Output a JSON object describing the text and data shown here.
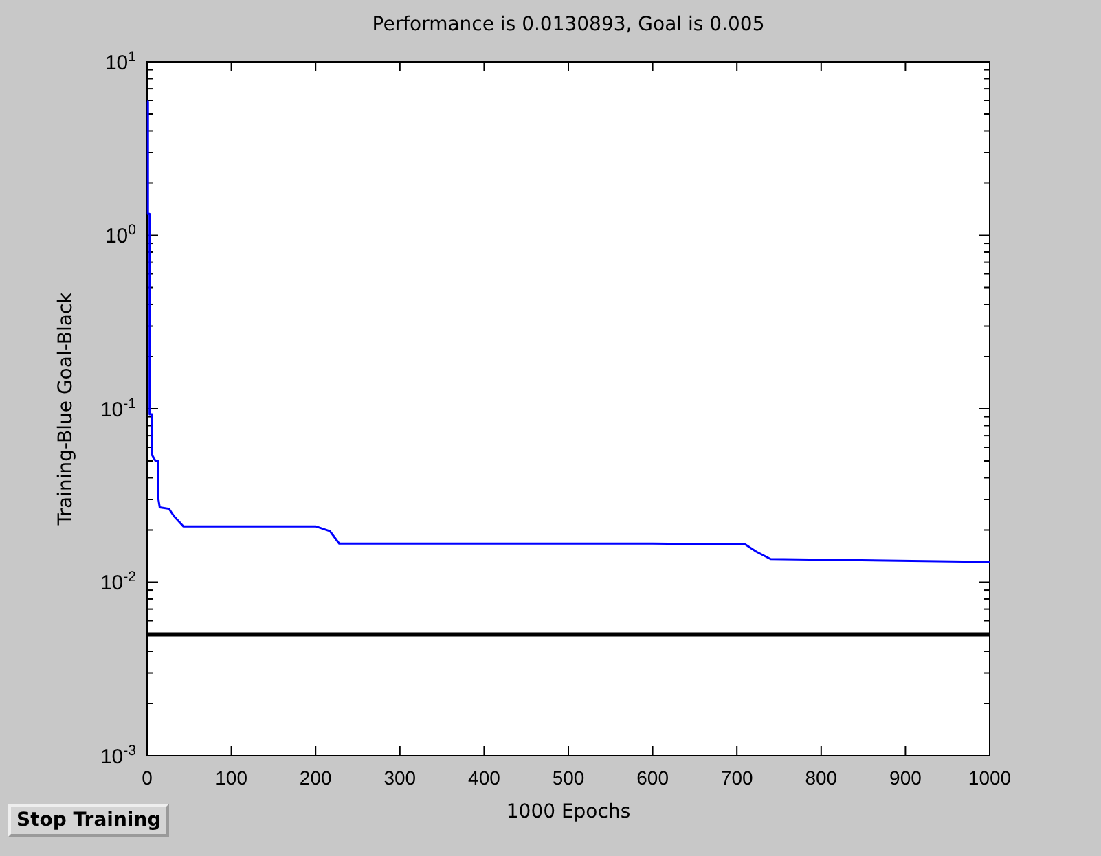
{
  "chart_data": {
    "type": "line",
    "title": "Performance is 0.0130893, Goal is 0.005",
    "xlabel": "1000 Epochs",
    "ylabel": "Training-Blue  Goal-Black",
    "log": "y",
    "grid": false,
    "marker": "none",
    "line_style": "solid",
    "xlim": [
      0,
      1000
    ],
    "xticks": [
      0,
      100,
      200,
      300,
      400,
      500,
      600,
      700,
      800,
      900,
      1000
    ],
    "ylim": [
      0.001,
      10
    ],
    "yticks": [
      {
        "value": 0.001,
        "label": "10$^{-3}$"
      },
      {
        "value": 0.002,
        "label": null
      },
      {
        "value": 0.003,
        "label": null
      },
      {
        "value": 0.004,
        "label": null
      },
      {
        "value": 0.005,
        "label": null
      },
      {
        "value": 0.006,
        "label": null
      },
      {
        "value": 0.007,
        "label": null
      },
      {
        "value": 0.008,
        "label": null
      },
      {
        "value": 0.009,
        "label": null
      },
      {
        "value": 0.01,
        "label": "10$^{-2}$"
      },
      {
        "value": 0.02,
        "label": null
      },
      {
        "value": 0.03,
        "label": null
      },
      {
        "value": 0.04,
        "label": null
      },
      {
        "value": 0.05,
        "label": null
      },
      {
        "value": 0.06,
        "label": null
      },
      {
        "value": 0.07,
        "label": null
      },
      {
        "value": 0.08,
        "label": null
      },
      {
        "value": 0.09,
        "label": null
      },
      {
        "value": 0.1,
        "label": "10$^{-1}$"
      },
      {
        "value": 0.2,
        "label": null
      },
      {
        "value": 0.3,
        "label": null
      },
      {
        "value": 0.4,
        "label": null
      },
      {
        "value": 0.5,
        "label": null
      },
      {
        "value": 0.6,
        "label": null
      },
      {
        "value": 0.7,
        "label": null
      },
      {
        "value": 0.8,
        "label": null
      },
      {
        "value": 0.9,
        "label": null
      },
      {
        "value": 1,
        "label": "10$^{0}$"
      },
      {
        "value": 2,
        "label": null
      },
      {
        "value": 3,
        "label": null
      },
      {
        "value": 4,
        "label": null
      },
      {
        "value": 5,
        "label": null
      },
      {
        "value": 6,
        "label": null
      },
      {
        "value": 7,
        "label": null
      },
      {
        "value": 8,
        "label": null
      },
      {
        "value": 9,
        "label": null
      },
      {
        "value": 10,
        "label": "10$^{1}$"
      }
    ],
    "ref_lines": [
      {
        "axis": "y",
        "value": 0.005,
        "label": null,
        "color": "#000000",
        "line_style": "solid"
      }
    ],
    "series": [
      {
        "color": "#0000ff",
        "x": [
          0,
          1,
          1,
          3,
          3,
          6,
          6,
          10,
          13,
          13,
          15,
          26,
          32,
          43,
          200,
          217,
          228,
          600,
          710,
          723,
          740,
          1000
        ],
        "values": [
          5.9,
          5.9,
          1.33,
          1.33,
          0.093,
          0.093,
          0.054,
          0.05,
          0.05,
          0.031,
          0.027,
          0.0265,
          0.024,
          0.021,
          0.021,
          0.0197,
          0.0167,
          0.0167,
          0.0165,
          0.015,
          0.0136,
          0.0131
        ]
      }
    ],
    "annotations": [
      "Stop Training"
    ]
  }
}
